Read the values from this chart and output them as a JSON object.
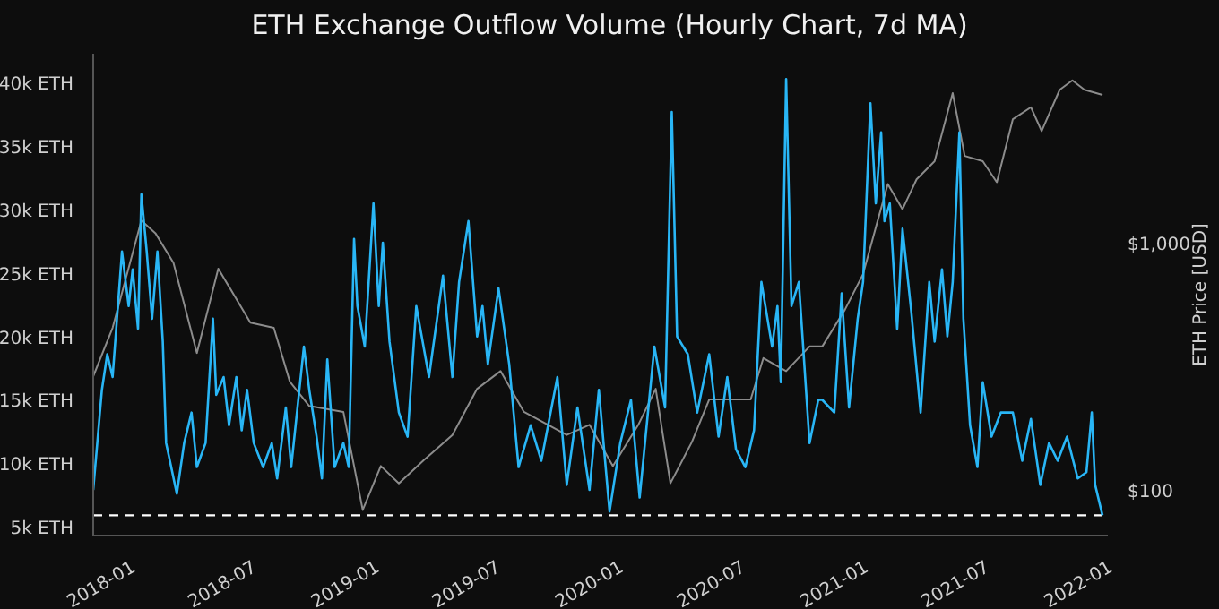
{
  "chart_data": {
    "type": "line",
    "title": "ETH Exchange Outflow Volume (Hourly Chart, 7d MA)",
    "y2label": "ETH Price [USD]",
    "xlim": [
      "2017-11-06",
      "2022-01-01"
    ],
    "xticks": [
      "2018-01",
      "2018-07",
      "2019-01",
      "2019-07",
      "2020-01",
      "2020-07",
      "2021-01",
      "2021-07",
      "2022-01"
    ],
    "ylim": [
      4.5,
      42.5
    ],
    "yticks": [
      {
        "value": 5,
        "label": "5k ETH"
      },
      {
        "value": 10,
        "label": "10k ETH"
      },
      {
        "value": 15,
        "label": "15k ETH"
      },
      {
        "value": 20,
        "label": "20k ETH"
      },
      {
        "value": 25,
        "label": "25k ETH"
      },
      {
        "value": 30,
        "label": "30k ETH"
      },
      {
        "value": 35,
        "label": "35k ETH"
      },
      {
        "value": 40,
        "label": "40k ETH"
      }
    ],
    "y2lim": [
      67,
      5960
    ],
    "y2ticks": [
      {
        "value": 100,
        "label": "$100"
      },
      {
        "value": 1000,
        "label": "$1,000"
      }
    ],
    "log": "y2",
    "ref_lines": [
      {
        "axis": "y",
        "value": 6.1,
        "color": "#ffffff",
        "line_style": "dashed"
      }
    ],
    "series": [
      {
        "axis": "y2",
        "color": "#8c8c8c",
        "x": [
          "2017-11-06",
          "2017-12-05",
          "2018-01-17",
          "2018-02-07",
          "2018-03-06",
          "2018-04-10",
          "2018-05-12",
          "2018-06-29",
          "2018-08-03",
          "2018-08-27",
          "2018-09-25",
          "2018-11-15",
          "2018-12-14",
          "2019-01-10",
          "2019-02-06",
          "2019-03-15",
          "2019-04-27",
          "2019-06-03",
          "2019-07-08",
          "2019-08-12",
          "2019-10-15",
          "2019-11-18",
          "2019-12-23",
          "2020-01-30",
          "2020-02-25",
          "2020-03-18",
          "2020-04-19",
          "2020-05-15",
          "2020-06-19",
          "2020-07-16",
          "2020-08-04",
          "2020-09-07",
          "2020-10-12",
          "2020-10-31",
          "2020-12-04",
          "2020-12-31",
          "2021-01-19",
          "2021-02-06",
          "2021-02-28",
          "2021-03-21",
          "2021-04-17",
          "2021-05-14",
          "2021-06-01",
          "2021-06-28",
          "2021-07-19",
          "2021-08-12",
          "2021-09-08",
          "2021-09-24",
          "2021-10-21",
          "2021-11-09",
          "2021-11-27",
          "2021-12-24"
        ],
        "values": [
          295,
          464,
          1260,
          1120,
          850,
          367,
          805,
          487,
          464,
          281,
          224,
          212,
          85,
          128,
          109,
          135,
          171,
          263,
          310,
          212,
          171,
          188,
          128,
          188,
          263,
          109,
          160,
          238,
          238,
          238,
          350,
          310,
          390,
          390,
          550,
          765,
          1180,
          1770,
          1400,
          1850,
          2190,
          4130,
          2300,
          2190,
          1800,
          3240,
          3620,
          2900,
          4260,
          4650,
          4260,
          4060
        ]
      },
      {
        "color": "#29b6f6",
        "x": [
          "2017-11-06",
          "2017-11-19",
          "2017-11-27",
          "2017-12-05",
          "2017-12-19",
          "2017-12-29",
          "2018-01-04",
          "2018-01-12",
          "2018-01-17",
          "2018-01-25",
          "2018-02-02",
          "2018-02-10",
          "2018-02-18",
          "2018-02-23",
          "2018-03-11",
          "2018-03-22",
          "2018-04-02",
          "2018-04-10",
          "2018-04-23",
          "2018-05-04",
          "2018-05-09",
          "2018-05-20",
          "2018-05-28",
          "2018-06-08",
          "2018-06-16",
          "2018-06-24",
          "2018-07-04",
          "2018-07-18",
          "2018-07-31",
          "2018-08-08",
          "2018-08-21",
          "2018-08-29",
          "2018-09-17",
          "2018-09-25",
          "2018-10-06",
          "2018-10-14",
          "2018-10-22",
          "2018-11-02",
          "2018-11-15",
          "2018-11-23",
          "2018-12-01",
          "2018-12-06",
          "2018-12-17",
          "2018-12-30",
          "2019-01-07",
          "2019-01-13",
          "2019-01-23",
          "2019-02-06",
          "2019-02-19",
          "2019-03-04",
          "2019-03-23",
          "2019-04-13",
          "2019-04-27",
          "2019-05-07",
          "2019-05-21",
          "2019-06-03",
          "2019-06-11",
          "2019-06-19",
          "2019-07-05",
          "2019-07-21",
          "2019-08-04",
          "2019-08-22",
          "2019-09-07",
          "2019-10-01",
          "2019-10-15",
          "2019-10-31",
          "2019-11-18",
          "2019-12-02",
          "2019-12-18",
          "2020-01-03",
          "2020-01-19",
          "2020-02-01",
          "2020-02-23",
          "2020-03-10",
          "2020-03-20",
          "2020-03-28",
          "2020-04-13",
          "2020-04-27",
          "2020-05-15",
          "2020-05-29",
          "2020-06-11",
          "2020-06-24",
          "2020-07-08",
          "2020-07-21",
          "2020-08-01",
          "2020-08-17",
          "2020-08-25",
          "2020-08-30",
          "2020-09-07",
          "2020-09-15",
          "2020-09-26",
          "2020-10-12",
          "2020-10-25",
          "2020-10-31",
          "2020-11-18",
          "2020-11-29",
          "2020-12-10",
          "2020-12-23",
          "2020-12-31",
          "2021-01-11",
          "2021-01-19",
          "2021-01-27",
          "2021-02-01",
          "2021-02-09",
          "2021-02-20",
          "2021-02-28",
          "2021-03-13",
          "2021-03-27",
          "2021-04-09",
          "2021-04-17",
          "2021-04-28",
          "2021-05-06",
          "2021-05-14",
          "2021-05-24",
          "2021-05-30",
          "2021-06-09",
          "2021-06-20",
          "2021-06-28",
          "2021-07-11",
          "2021-07-25",
          "2021-08-12",
          "2021-08-26",
          "2021-09-08",
          "2021-09-22",
          "2021-10-05",
          "2021-10-18",
          "2021-11-01",
          "2021-11-17",
          "2021-11-30",
          "2021-12-08",
          "2021-12-13",
          "2021-12-24"
        ],
        "values": [
          8.1,
          16,
          18.8,
          17,
          26.9,
          22.6,
          25.5,
          20.8,
          31.4,
          26.9,
          21.6,
          26.9,
          19.8,
          11.8,
          7.8,
          11.8,
          14.2,
          9.9,
          11.8,
          21.6,
          15.6,
          17,
          13.2,
          17,
          12.8,
          16,
          11.8,
          9.9,
          11.8,
          9,
          14.6,
          9.9,
          19.4,
          16,
          12.3,
          9,
          18.4,
          9.9,
          11.8,
          9.9,
          27.9,
          22.6,
          19.4,
          30.7,
          22.6,
          27.6,
          19.8,
          14.2,
          12.3,
          22.6,
          17,
          25,
          17,
          24.5,
          29.3,
          20.2,
          22.6,
          18,
          24,
          18,
          9.9,
          13.2,
          10.4,
          17,
          8.5,
          14.6,
          8.1,
          16,
          6.4,
          11.8,
          15.2,
          7.5,
          19.4,
          14.6,
          37.9,
          20.2,
          18.8,
          14.2,
          18.8,
          12.3,
          17,
          11.3,
          9.9,
          12.8,
          24.5,
          19.4,
          22.6,
          16.6,
          40.5,
          22.6,
          24.5,
          11.8,
          15.2,
          15.2,
          14.2,
          23.6,
          14.6,
          21.6,
          24.5,
          38.6,
          30.7,
          36.3,
          29.3,
          30.7,
          20.8,
          28.7,
          22.2,
          14.2,
          24.5,
          19.8,
          25.5,
          20.2,
          24.5,
          36.3,
          21.6,
          13.2,
          9.9,
          16.6,
          12.3,
          14.2,
          14.2,
          10.4,
          13.7,
          8.5,
          11.8,
          10.4,
          12.3,
          9,
          9.5,
          14.2,
          8.5,
          6.1
        ]
      }
    ]
  }
}
